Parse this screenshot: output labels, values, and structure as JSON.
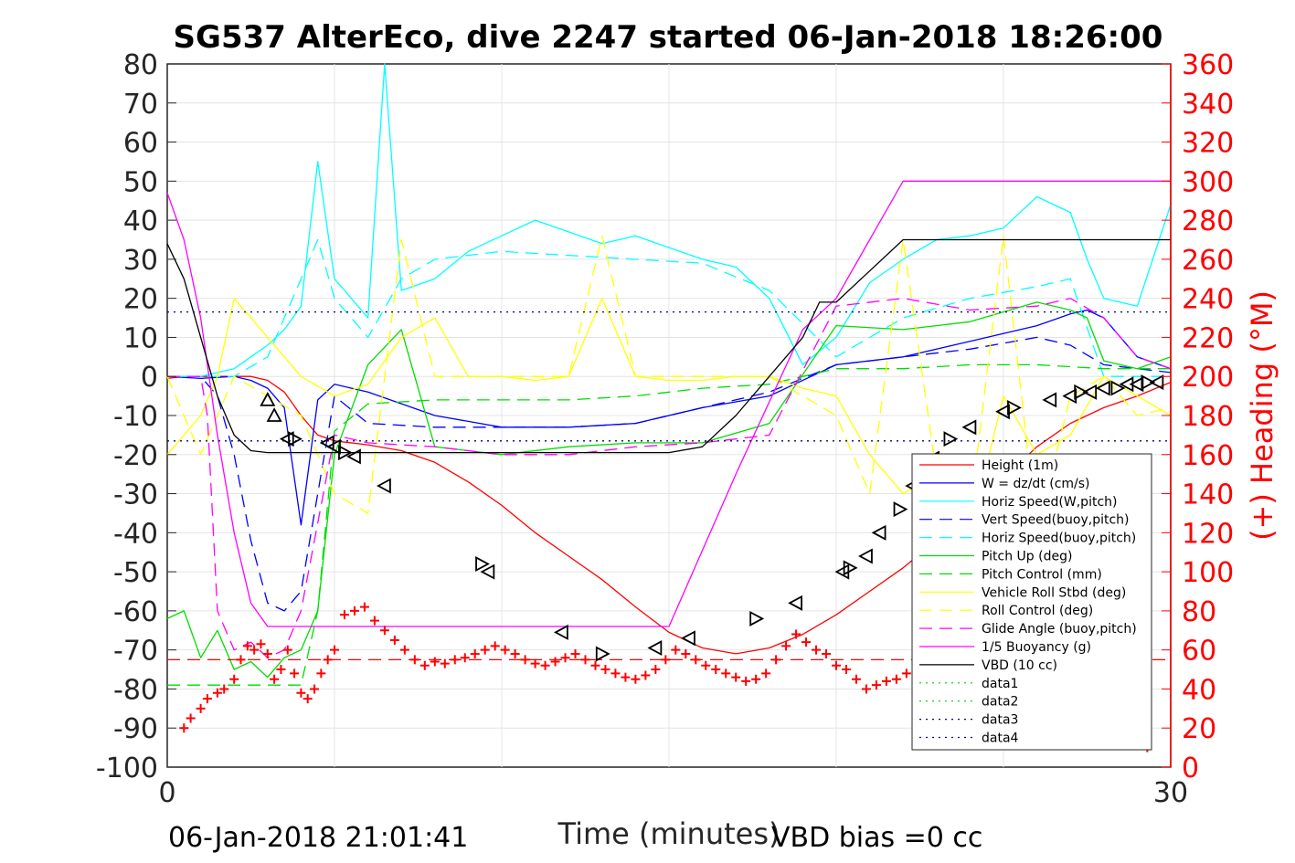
{
  "chart_data": {
    "type": "line",
    "title": "SG537 AlterEco, dive 2247 started 06-Jan-2018 18:26:00",
    "xlabel": "Time (minutes)",
    "ylabel_right": "(+) Heading (°M)",
    "footer_left": "06-Jan-2018 21:01:41",
    "footer_right": "VBD bias =0 cc",
    "xlim": [
      0,
      30
    ],
    "ylim": [
      -100,
      80
    ],
    "ylim_right": [
      0,
      360
    ],
    "x_ticks": [
      "0",
      "30"
    ],
    "y_ticks": [
      "80",
      "70",
      "60",
      "50",
      "40",
      "30",
      "20",
      "10",
      "0",
      "-10",
      "-20",
      "-30",
      "-40",
      "-50",
      "-60",
      "-70",
      "-80",
      "-90",
      "-100"
    ],
    "y_ticks_right": [
      "360",
      "340",
      "320",
      "300",
      "280",
      "260",
      "240",
      "220",
      "200",
      "180",
      "160",
      "140",
      "120",
      "100",
      "80",
      "60",
      "40",
      "20",
      "0"
    ],
    "grid": true,
    "legend_position": "lower-right",
    "legend": [
      {
        "label": "Height (1m)",
        "color": "#ff0000",
        "dash": "solid"
      },
      {
        "label": "W = dz/dt (cm/s)",
        "color": "#0000ff",
        "dash": "solid"
      },
      {
        "label": "Horiz Speed(W,pitch)",
        "color": "#00ffff",
        "dash": "solid"
      },
      {
        "label": "Vert Speed(buoy,pitch)",
        "color": "#0000ff",
        "dash": "dashed"
      },
      {
        "label": "Horiz Speed(buoy,pitch)",
        "color": "#00ffff",
        "dash": "dashed"
      },
      {
        "label": "Pitch Up (deg)",
        "color": "#00dd00",
        "dash": "solid"
      },
      {
        "label": "Pitch Control (mm)",
        "color": "#00dd00",
        "dash": "dashed"
      },
      {
        "label": "Vehicle Roll Stbd (deg)",
        "color": "#ffff00",
        "dash": "solid"
      },
      {
        "label": "Roll Control (deg)",
        "color": "#ffff00",
        "dash": "dashed"
      },
      {
        "label": "Glide Angle (buoy,pitch)",
        "color": "#ff00ff",
        "dash": "dashed"
      },
      {
        "label": "1/5 Buoyancy (g)",
        "color": "#ff00ff",
        "dash": "solid"
      },
      {
        "label": "VBD (10 cc)",
        "color": "#000000",
        "dash": "solid"
      },
      {
        "label": "data1",
        "color": "#00cc00",
        "dash": "dotted"
      },
      {
        "label": "data2",
        "color": "#00cc00",
        "dash": "dotted"
      },
      {
        "label": "data3",
        "color": "#000080",
        "dash": "dotted"
      },
      {
        "label": "data4",
        "color": "#000080",
        "dash": "dotted"
      }
    ],
    "series": [
      {
        "name": "Height (1m)",
        "x": [
          0,
          0.5,
          1,
          1.5,
          2,
          2.5,
          3,
          3.5,
          4,
          4.5,
          5,
          6,
          7,
          8,
          9,
          10,
          11,
          12,
          13,
          14,
          15,
          16,
          17,
          18,
          19,
          20,
          21,
          22,
          23,
          24,
          25,
          26,
          27,
          28,
          29,
          30
        ],
        "y": [
          -0.5,
          0,
          0,
          0,
          0,
          0,
          -1,
          -4,
          -10,
          -15,
          -16.5,
          -17.5,
          -19,
          -22,
          -27,
          -33,
          -40,
          -46,
          -52,
          -59,
          -65.5,
          -69.5,
          -71,
          -69.5,
          -66,
          -61,
          -55,
          -49,
          -42,
          -34,
          -26,
          -18,
          -12,
          -8,
          -5,
          -1.5
        ]
      },
      {
        "name": "W = dz/dt (cm/s)",
        "x": [
          0,
          1,
          2,
          2.5,
          3,
          3.5,
          4,
          4.5,
          5,
          6,
          8,
          10,
          12,
          14,
          16,
          18,
          20,
          22,
          24,
          26,
          27,
          27.5,
          28,
          29,
          30
        ],
        "y": [
          0,
          -0.5,
          0,
          -1,
          -3,
          -8,
          -38,
          -6,
          -2,
          -4,
          -10,
          -13,
          -13,
          -12,
          -8,
          -5,
          3,
          5,
          9,
          13,
          16,
          17,
          15,
          5,
          2
        ]
      },
      {
        "name": "Horiz Speed(W,pitch)",
        "x": [
          0,
          1,
          2,
          2.5,
          3,
          3.5,
          4,
          4.5,
          5,
          5.5,
          6,
          6.5,
          7,
          8,
          9,
          10,
          11,
          12,
          13,
          14,
          15,
          16,
          17,
          18,
          19,
          20,
          21,
          22,
          23,
          24,
          25,
          26,
          27,
          27.5,
          28,
          29,
          30
        ],
        "y": [
          0,
          0,
          2,
          5,
          8,
          12,
          18,
          55,
          25,
          20,
          15,
          80,
          22,
          25,
          32,
          36,
          40,
          37,
          34,
          36,
          33,
          30,
          28,
          20,
          3,
          10,
          24,
          30,
          35,
          36,
          38,
          46,
          42,
          30,
          20,
          18,
          44
        ]
      },
      {
        "name": "Vert Speed(buoy,pitch)",
        "x": [
          0,
          1,
          1.5,
          2,
          2.5,
          3,
          3.5,
          4,
          5,
          6,
          8,
          10,
          12,
          14,
          16,
          18,
          20,
          22,
          24,
          26,
          27,
          28,
          29,
          30
        ],
        "y": [
          0,
          0,
          -5,
          -20,
          -42,
          -58,
          -60,
          -55,
          -5,
          -12,
          -13,
          -13,
          -13,
          -12,
          -8,
          -4,
          3,
          5,
          7,
          10,
          8,
          3,
          2,
          1
        ]
      },
      {
        "name": "Horiz Speed(buoy,pitch)",
        "x": [
          0,
          1,
          2,
          3,
          3.5,
          4,
          4.5,
          5,
          6,
          7,
          8,
          10,
          12,
          14,
          16,
          18,
          20,
          22,
          24,
          26,
          27,
          28,
          29,
          30
        ],
        "y": [
          0,
          0,
          0,
          5,
          15,
          25,
          35,
          20,
          10,
          25,
          30,
          32,
          31,
          30,
          29,
          22,
          5,
          15,
          20,
          23,
          25,
          0,
          0,
          0
        ]
      },
      {
        "name": "Pitch Up (deg)",
        "x": [
          0,
          0.5,
          1,
          1.5,
          2,
          2.5,
          3,
          3.5,
          4,
          4.5,
          5,
          6,
          7,
          8,
          10,
          12,
          14,
          16,
          18,
          20,
          22,
          24,
          26,
          27,
          27.5,
          28,
          29,
          30
        ],
        "y": [
          -62,
          -60,
          -72,
          -65,
          -75,
          -73,
          -77,
          -72,
          -70,
          -60,
          -20,
          3,
          12,
          -18,
          -20,
          -18,
          -17,
          -17,
          -12,
          13,
          12,
          14,
          19,
          17,
          15,
          4,
          2,
          5
        ]
      },
      {
        "name": "Pitch Control (mm)",
        "x": [
          0,
          1,
          2,
          3,
          3.5,
          4,
          4.5,
          5,
          6,
          8,
          10,
          12,
          14,
          16,
          18,
          20,
          22,
          24,
          26,
          28,
          30
        ],
        "y": [
          -79,
          -79,
          -79,
          -79,
          -79,
          -79,
          -60,
          -14,
          -7,
          -6,
          -6,
          -6,
          -5,
          -3,
          -2,
          2,
          2,
          3,
          3,
          2,
          2
        ]
      },
      {
        "name": "Vehicle Roll Stbd (deg)",
        "x": [
          0,
          0.5,
          1,
          1.5,
          2,
          3,
          4,
          5,
          6,
          7,
          8,
          9,
          10,
          11,
          12,
          13,
          14,
          15,
          16,
          17,
          18,
          19,
          20,
          21,
          22,
          23,
          24,
          25,
          26,
          27,
          28,
          29,
          30
        ],
        "y": [
          -20,
          -15,
          -10,
          0,
          20,
          10,
          0,
          -5,
          -2,
          10,
          15,
          0,
          0,
          -1,
          0,
          20,
          0,
          -1,
          -1,
          0,
          0,
          -3,
          -5,
          -20,
          -30,
          -25,
          -40,
          -5,
          -20,
          -15,
          0,
          -5,
          -10
        ]
      },
      {
        "name": "Roll Control (deg)",
        "x": [
          0,
          1,
          2,
          3,
          4,
          5,
          6,
          7,
          8,
          9,
          10,
          11,
          12,
          13,
          14,
          15,
          16,
          17,
          18,
          19,
          20,
          21,
          22,
          23,
          24,
          25,
          26,
          27,
          28,
          29,
          30
        ],
        "y": [
          0,
          -20,
          0,
          -5,
          -10,
          -30,
          -35,
          35,
          0,
          0,
          0,
          0,
          0,
          36,
          0,
          0,
          0,
          0,
          0,
          -5,
          -10,
          -30,
          35,
          -25,
          -35,
          36,
          -40,
          -5,
          0,
          -10,
          -8
        ]
      },
      {
        "name": "Glide Angle (buoy,pitch)",
        "x": [
          0,
          1,
          1.2,
          1.5,
          2,
          2.5,
          3,
          3.5,
          4,
          5,
          6,
          8,
          10,
          12,
          14,
          16,
          18,
          20,
          22,
          24,
          26,
          27,
          28,
          29,
          30
        ],
        "y": [
          0,
          0,
          -10,
          -60,
          -70,
          -68,
          -72,
          -70,
          -60,
          -15,
          -17,
          -18,
          -20,
          -20,
          -18,
          -17,
          -15,
          18,
          20,
          17,
          18,
          20,
          15,
          5,
          2
        ]
      },
      {
        "name": "1/5 Buoyancy (g)",
        "x": [
          0,
          0.5,
          1,
          1.5,
          2,
          2.5,
          3,
          3.5,
          4,
          5,
          8,
          10,
          12,
          14,
          15,
          17,
          19,
          20,
          21,
          22,
          23,
          24,
          25,
          27,
          29,
          30
        ],
        "y": [
          47,
          35,
          15,
          -15,
          -40,
          -58,
          -64,
          -64,
          -64,
          -64,
          -64,
          -64,
          -64,
          -64,
          -64,
          -25,
          12,
          20,
          35,
          50,
          50,
          50,
          50,
          50,
          50,
          50
        ]
      },
      {
        "name": "VBD (10 cc)",
        "x": [
          0,
          0.5,
          1,
          1.5,
          2,
          2.5,
          3,
          3.5,
          4,
          5,
          6,
          8,
          10,
          12,
          14,
          15,
          16,
          17,
          18,
          19,
          19.5,
          20,
          21,
          22,
          23,
          24,
          26,
          28,
          30
        ],
        "y": [
          34,
          25,
          10,
          -5,
          -15,
          -19,
          -19.5,
          -19.5,
          -19.5,
          -19.5,
          -19.5,
          -19.5,
          -19.5,
          -19.5,
          -19.5,
          -19.5,
          -18,
          -10,
          0,
          10,
          19,
          19,
          27,
          35,
          35,
          35,
          35,
          35,
          35
        ]
      },
      {
        "name": "data3",
        "x": [
          0,
          30
        ],
        "y": [
          16.5,
          16.5
        ]
      },
      {
        "name": "data4",
        "x": [
          0,
          30
        ],
        "y": [
          -16.5,
          -16.5
        ]
      },
      {
        "name": "dashed red reference",
        "x": [
          0,
          30
        ],
        "y": [
          -72.5,
          -72.5
        ]
      }
    ],
    "heading_points": {
      "x": [
        0.5,
        0.7,
        1,
        1.2,
        1.5,
        1.7,
        2,
        2.2,
        2.4,
        2.6,
        2.8,
        3,
        3.2,
        3.4,
        3.6,
        3.8,
        4,
        4.2,
        4.4,
        4.6,
        4.8,
        5,
        5.3,
        5.6,
        5.9,
        6.2,
        6.5,
        6.8,
        7.1,
        7.4,
        7.7,
        8,
        8.3,
        8.6,
        8.9,
        9.2,
        9.5,
        9.8,
        10.1,
        10.4,
        10.7,
        11,
        11.3,
        11.6,
        11.9,
        12.2,
        12.5,
        12.8,
        13.1,
        13.4,
        13.7,
        14,
        14.3,
        14.6,
        14.9,
        15.2,
        15.5,
        15.8,
        16.1,
        16.4,
        16.7,
        17,
        17.3,
        17.6,
        17.9,
        18.2,
        18.5,
        18.8,
        19.1,
        19.4,
        19.7,
        20,
        20.3,
        20.6,
        20.9,
        21.2,
        21.5,
        21.8,
        22.1,
        22.4,
        22.7,
        23,
        23.3,
        23.6,
        23.9,
        24.2,
        24.5,
        24.8,
        25.1,
        25.4,
        25.7,
        26,
        26.3,
        26.6,
        26.9,
        27.2,
        27.5,
        27.8,
        28.1,
        28.4,
        28.7,
        29,
        29.3
      ],
      "y": [
        20,
        25,
        30,
        35,
        38,
        40,
        45,
        55,
        62,
        60,
        63,
        58,
        45,
        50,
        60,
        48,
        38,
        35,
        40,
        48,
        55,
        60,
        78,
        80,
        82,
        75,
        70,
        65,
        60,
        55,
        52,
        54,
        53,
        55,
        56,
        58,
        60,
        62,
        60,
        58,
        55,
        53,
        52,
        54,
        56,
        58,
        55,
        52,
        50,
        48,
        46,
        45,
        47,
        50,
        55,
        60,
        58,
        55,
        52,
        50,
        48,
        46,
        44,
        45,
        48,
        55,
        62,
        68,
        64,
        60,
        58,
        52,
        50,
        45,
        40,
        42,
        44,
        45,
        48,
        50,
        55,
        60,
        62,
        58,
        55,
        50,
        46,
        44,
        42,
        40,
        45,
        52,
        60,
        65,
        70,
        75,
        72,
        68,
        60,
        52,
        45,
        35,
        10
      ]
    },
    "triangle_markers": {
      "x": [
        3.0,
        3.2,
        3.6,
        3.8,
        4.8,
        5.0,
        5.3,
        5.6,
        6.5,
        9.4,
        9.6,
        11.8,
        13.0,
        14.6,
        15.6,
        17.6,
        18.8,
        20.2,
        20.4,
        20.9,
        21.3,
        21.9,
        22.3,
        22.9,
        23.4,
        24.0,
        25.0,
        25.3,
        26.4,
        27.0,
        27.3,
        27.6,
        28.0,
        28.4,
        28.7,
        29.0,
        29.3,
        29.6
      ],
      "y": [
        -6,
        -10,
        -16,
        -16,
        -17,
        -18,
        -19.5,
        -20.5,
        -28,
        -48,
        -50,
        -65.5,
        -71,
        -69.5,
        -67,
        -62,
        -58,
        -50,
        -49,
        -46,
        -40,
        -34,
        -28,
        -21,
        -16,
        -13,
        -9,
        -8,
        -6,
        -5,
        -4,
        -4,
        -3,
        -3,
        -2,
        -2,
        -1.5,
        -1.5
      ]
    }
  }
}
